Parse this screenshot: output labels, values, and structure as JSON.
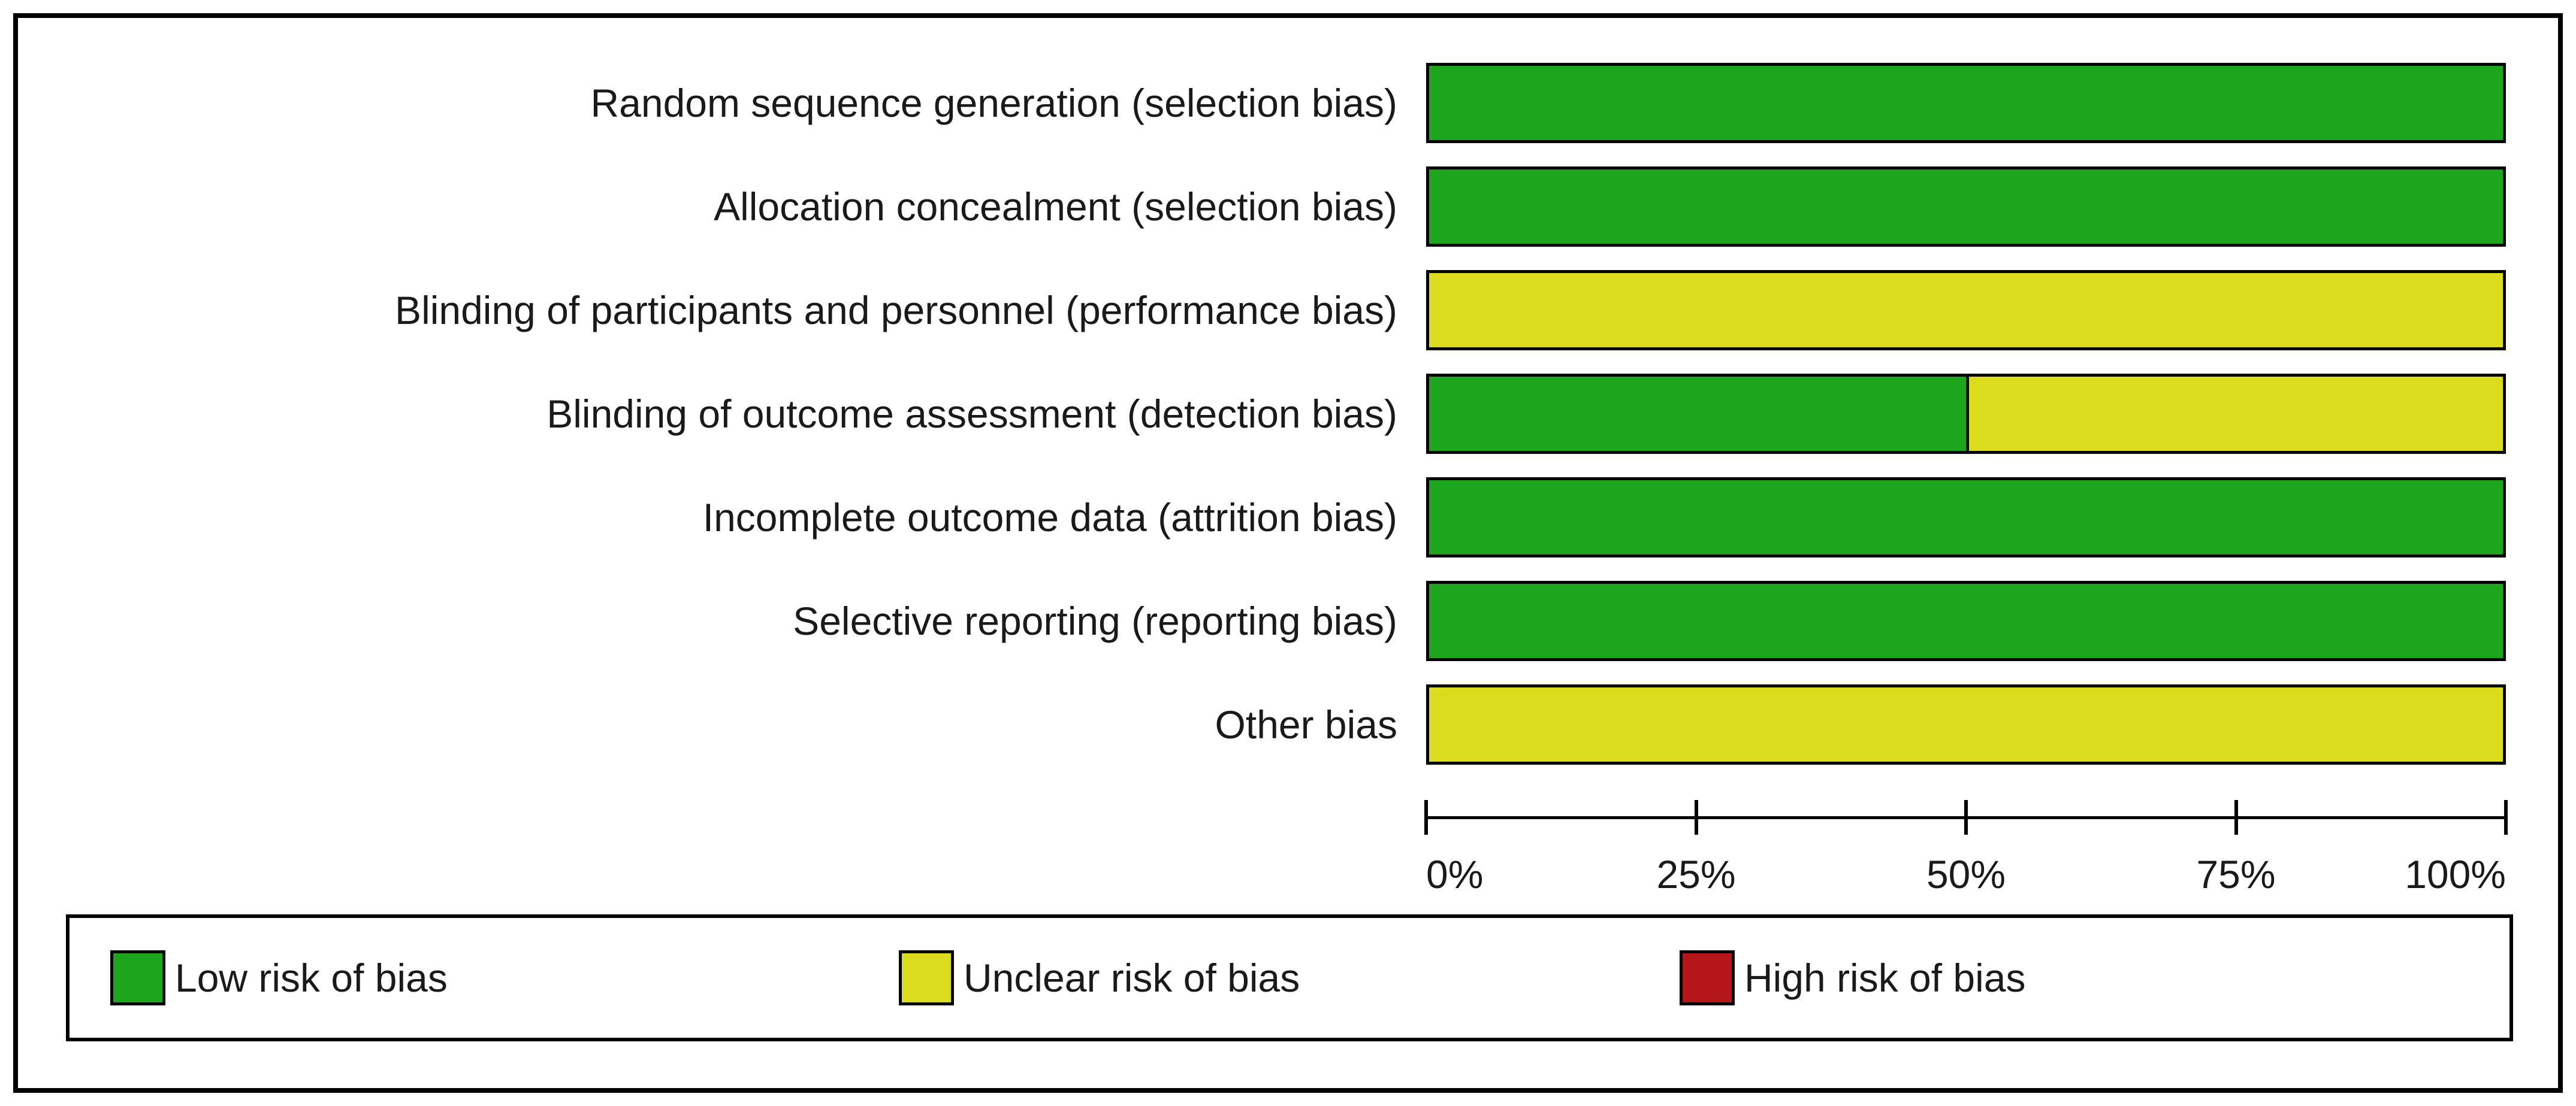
{
  "chart_data": {
    "type": "bar",
    "orientation": "horizontal",
    "stacked": true,
    "title": "",
    "xlabel": "",
    "ylabel": "",
    "categories": [
      "Random sequence generation (selection bias)",
      "Allocation concealment (selection bias)",
      "Blinding of participants and personnel (performance bias)",
      "Blinding of outcome assessment (detection bias)",
      "Incomplete outcome data (attrition bias)",
      "Selective reporting (reporting bias)",
      "Other bias"
    ],
    "series": [
      {
        "name": "Low risk of bias",
        "color": "#1DA51D",
        "values": [
          100,
          100,
          0,
          50,
          100,
          100,
          0
        ]
      },
      {
        "name": "Unclear risk of bias",
        "color": "#DCDC1E",
        "values": [
          0,
          0,
          100,
          50,
          0,
          0,
          100
        ]
      },
      {
        "name": "High risk of bias",
        "color": "#B5161A",
        "values": [
          0,
          0,
          0,
          0,
          0,
          0,
          0
        ]
      }
    ],
    "x_axis": {
      "min": 0,
      "max": 100,
      "ticks": [
        "0%",
        "25%",
        "50%",
        "75%",
        "100%"
      ]
    },
    "grid": false,
    "legend_position": "bottom"
  },
  "legend": {
    "items": [
      {
        "label": "Low risk of bias",
        "color": "#1DA51D"
      },
      {
        "label": "Unclear risk of bias",
        "color": "#DCDC1E"
      },
      {
        "label": "High risk of bias",
        "color": "#B5161A"
      }
    ]
  }
}
